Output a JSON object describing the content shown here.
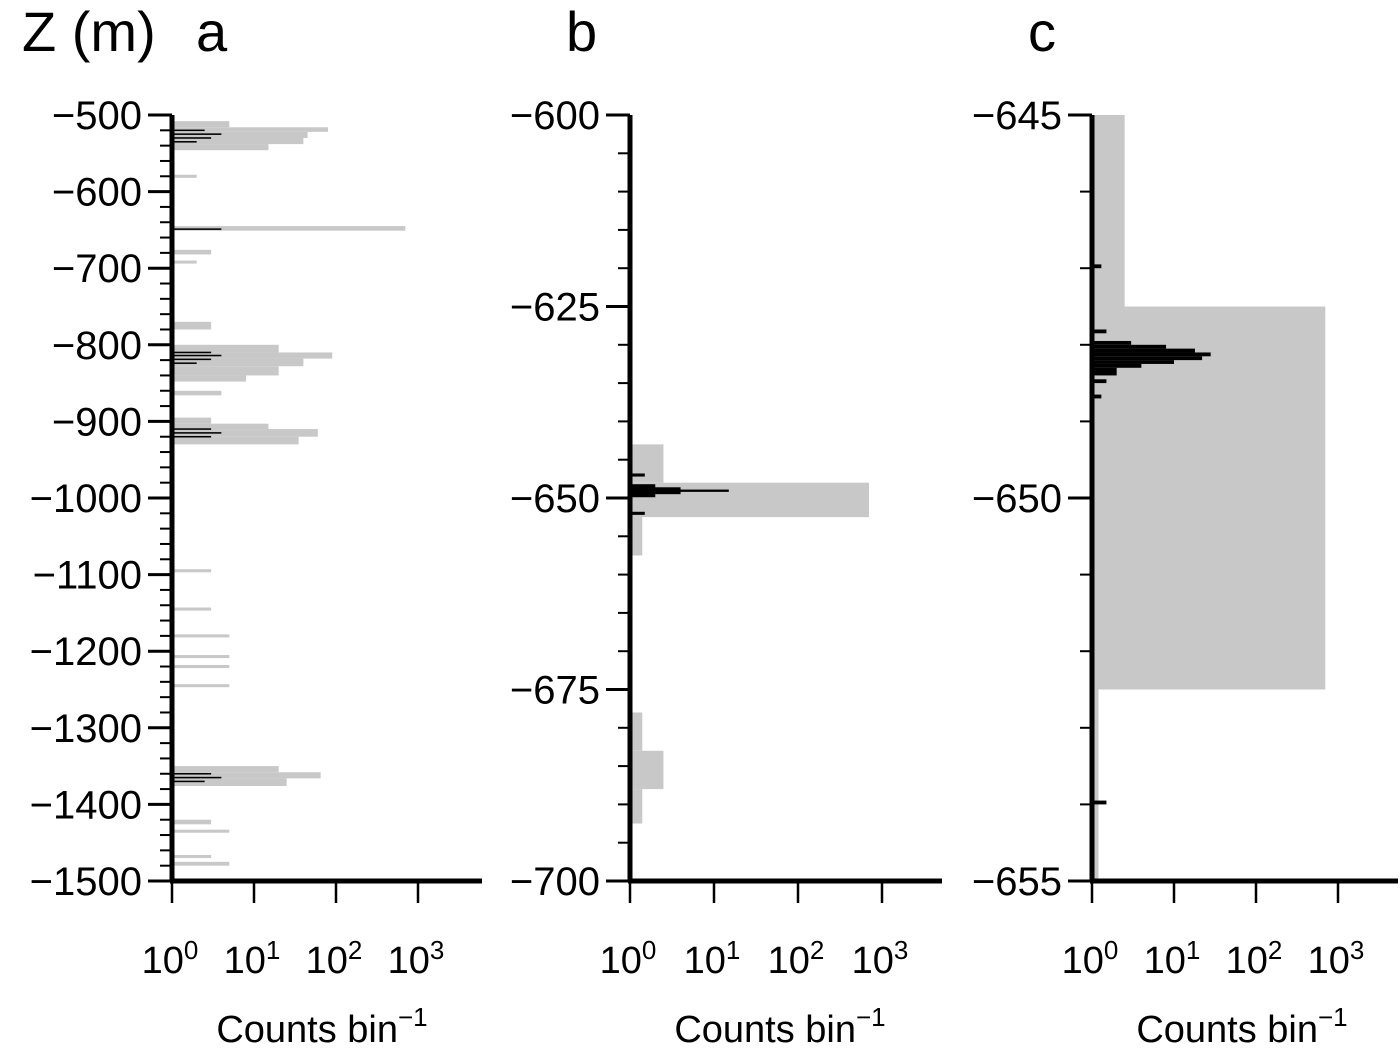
{
  "figure": {
    "y_unit_label": "Z (m)"
  },
  "chart_data": [
    {
      "type": "bar",
      "panel_label": "a",
      "orientation": "horizontal",
      "ylabel": "Z (m)",
      "xlabel": "Counts bin",
      "xlabel_superscript": "−1",
      "xscale": "log",
      "xlim": [
        1,
        5000
      ],
      "ylim": [
        -1500,
        -500
      ],
      "y_ticks": [
        -500,
        -600,
        -700,
        -800,
        -900,
        -1000,
        -1100,
        -1200,
        -1300,
        -1400,
        -1500
      ],
      "y_tick_labels": [
        "−500",
        "−600",
        "−700",
        "−800",
        "−900",
        "−1000",
        "−1100",
        "−1200",
        "−1300",
        "−1400",
        "−1500"
      ],
      "x_ticks": [
        1,
        10,
        100,
        1000
      ],
      "x_tick_labels": [
        {
          "base": "10",
          "exp": "0"
        },
        {
          "base": "10",
          "exp": "1"
        },
        {
          "base": "10",
          "exp": "2"
        },
        {
          "base": "10",
          "exp": "3"
        }
      ],
      "series": [
        {
          "color": "#c8c8c8",
          "bins": [
            {
              "z0": -508,
              "z1": -516,
              "count": 5
            },
            {
              "z0": -516,
              "z1": -522,
              "count": 80
            },
            {
              "z0": -522,
              "z1": -530,
              "count": 45
            },
            {
              "z0": -530,
              "z1": -538,
              "count": 40
            },
            {
              "z0": -538,
              "z1": -546,
              "count": 15
            },
            {
              "z0": -578,
              "z1": -582,
              "count": 2
            },
            {
              "z0": -645,
              "z1": -651,
              "count": 700
            },
            {
              "z0": -676,
              "z1": -682,
              "count": 3
            },
            {
              "z0": -690,
              "z1": -694,
              "count": 2
            },
            {
              "z0": -770,
              "z1": -780,
              "count": 3
            },
            {
              "z0": -800,
              "z1": -810,
              "count": 20
            },
            {
              "z0": -810,
              "z1": -818,
              "count": 90
            },
            {
              "z0": -818,
              "z1": -828,
              "count": 40
            },
            {
              "z0": -828,
              "z1": -840,
              "count": 20
            },
            {
              "z0": -840,
              "z1": -848,
              "count": 8
            },
            {
              "z0": -860,
              "z1": -866,
              "count": 4
            },
            {
              "z0": -895,
              "z1": -903,
              "count": 3
            },
            {
              "z0": -903,
              "z1": -910,
              "count": 15
            },
            {
              "z0": -910,
              "z1": -920,
              "count": 60
            },
            {
              "z0": -920,
              "z1": -930,
              "count": 35
            },
            {
              "z0": -1093,
              "z1": -1097,
              "count": 3
            },
            {
              "z0": -1143,
              "z1": -1147,
              "count": 3
            },
            {
              "z0": -1178,
              "z1": -1182,
              "count": 5
            },
            {
              "z0": -1205,
              "z1": -1209,
              "count": 5
            },
            {
              "z0": -1218,
              "z1": -1222,
              "count": 5
            },
            {
              "z0": -1243,
              "z1": -1247,
              "count": 5
            },
            {
              "z0": -1350,
              "z1": -1358,
              "count": 20
            },
            {
              "z0": -1358,
              "z1": -1366,
              "count": 65
            },
            {
              "z0": -1366,
              "z1": -1376,
              "count": 25
            },
            {
              "z0": -1420,
              "z1": -1426,
              "count": 3
            },
            {
              "z0": -1433,
              "z1": -1437,
              "count": 5
            },
            {
              "z0": -1466,
              "z1": -1470,
              "count": 3
            },
            {
              "z0": -1475,
              "z1": -1480,
              "count": 5
            }
          ]
        },
        {
          "color": "#000000",
          "bins": [
            {
              "z0": -519,
              "z1": -521,
              "count": 2.5
            },
            {
              "z0": -524,
              "z1": -526,
              "count": 4
            },
            {
              "z0": -529,
              "z1": -531,
              "count": 3
            },
            {
              "z0": -534,
              "z1": -536,
              "count": 2
            },
            {
              "z0": -648,
              "z1": -650,
              "count": 4
            },
            {
              "z0": -809,
              "z1": -811,
              "count": 3
            },
            {
              "z0": -813,
              "z1": -815,
              "count": 4
            },
            {
              "z0": -818,
              "z1": -820,
              "count": 3
            },
            {
              "z0": -823,
              "z1": -825,
              "count": 2
            },
            {
              "z0": -909,
              "z1": -911,
              "count": 3
            },
            {
              "z0": -914,
              "z1": -916,
              "count": 4
            },
            {
              "z0": -919,
              "z1": -921,
              "count": 3
            },
            {
              "z0": -1359,
              "z1": -1361,
              "count": 3
            },
            {
              "z0": -1364,
              "z1": -1366,
              "count": 4
            },
            {
              "z0": -1369,
              "z1": -1371,
              "count": 2.5
            }
          ]
        }
      ]
    },
    {
      "type": "bar",
      "panel_label": "b",
      "orientation": "horizontal",
      "xlabel": "Counts bin",
      "xlabel_superscript": "−1",
      "xscale": "log",
      "xlim": [
        1,
        5000
      ],
      "ylim": [
        -700,
        -600
      ],
      "y_ticks": [
        -600,
        -625,
        -650,
        -675,
        -700
      ],
      "y_tick_labels": [
        "−600",
        "−625",
        "−650",
        "−675",
        "−700"
      ],
      "x_ticks": [
        1,
        10,
        100,
        1000
      ],
      "x_tick_labels": [
        {
          "base": "10",
          "exp": "0"
        },
        {
          "base": "10",
          "exp": "1"
        },
        {
          "base": "10",
          "exp": "2"
        },
        {
          "base": "10",
          "exp": "3"
        }
      ],
      "series": [
        {
          "color": "#c8c8c8",
          "bins": [
            {
              "z0": -643,
              "z1": -648,
              "count": 2.5
            },
            {
              "z0": -648,
              "z1": -652.5,
              "count": 700
            },
            {
              "z0": -652.5,
              "z1": -657.5,
              "count": 1.4
            },
            {
              "z0": -678,
              "z1": -683,
              "count": 1.4
            },
            {
              "z0": -683,
              "z1": -688,
              "count": 2.5
            },
            {
              "z0": -688,
              "z1": -692.5,
              "count": 1.4
            }
          ]
        },
        {
          "color": "#000000",
          "bins": [
            {
              "z0": -648.9,
              "z1": -649.2,
              "count": 15
            },
            {
              "z0": -648.6,
              "z1": -649.5,
              "count": 4
            },
            {
              "z0": -648.2,
              "z1": -649.9,
              "count": 2
            },
            {
              "z0": -646.8,
              "z1": -647.2,
              "count": 1.5
            },
            {
              "z0": -651.8,
              "z1": -652.2,
              "count": 1.5
            }
          ]
        }
      ]
    },
    {
      "type": "bar",
      "panel_label": "c",
      "orientation": "horizontal",
      "xlabel": "Counts bin",
      "xlabel_superscript": "−1",
      "xscale": "log",
      "xlim": [
        1,
        5000
      ],
      "ylim": [
        -655,
        -645
      ],
      "y_ticks": [
        -645,
        -650,
        -655
      ],
      "y_tick_labels": [
        "−645",
        "−650",
        "−655"
      ],
      "x_ticks": [
        1,
        10,
        100,
        1000
      ],
      "x_tick_labels": [
        {
          "base": "10",
          "exp": "0"
        },
        {
          "base": "10",
          "exp": "1"
        },
        {
          "base": "10",
          "exp": "2"
        },
        {
          "base": "10",
          "exp": "3"
        }
      ],
      "series": [
        {
          "color": "#c8c8c8",
          "bins": [
            {
              "z0": -645,
              "z1": -647.5,
              "count": 2.5
            },
            {
              "z0": -647.5,
              "z1": -652.5,
              "count": 700
            },
            {
              "z0": -652.5,
              "z1": -655,
              "count": 1.2
            }
          ]
        },
        {
          "color": "#000000",
          "bins": [
            {
              "z0": -647.95,
              "z1": -648.0,
              "count": 3
            },
            {
              "z0": -648.0,
              "z1": -648.05,
              "count": 8
            },
            {
              "z0": -648.05,
              "z1": -648.1,
              "count": 18
            },
            {
              "z0": -648.1,
              "z1": -648.15,
              "count": 28
            },
            {
              "z0": -648.15,
              "z1": -648.2,
              "count": 22
            },
            {
              "z0": -648.2,
              "z1": -648.25,
              "count": 10
            },
            {
              "z0": -648.25,
              "z1": -648.3,
              "count": 4
            },
            {
              "z0": -648.3,
              "z1": -648.4,
              "count": 2
            },
            {
              "z0": -648.45,
              "z1": -648.5,
              "count": 1.5
            },
            {
              "z0": -648.65,
              "z1": -648.7,
              "count": 1.3
            },
            {
              "z0": -647.8,
              "z1": -647.85,
              "count": 1.5
            },
            {
              "z0": -646.95,
              "z1": -647.0,
              "count": 1.3
            },
            {
              "z0": -653.95,
              "z1": -654.0,
              "count": 1.5
            }
          ]
        }
      ]
    }
  ]
}
